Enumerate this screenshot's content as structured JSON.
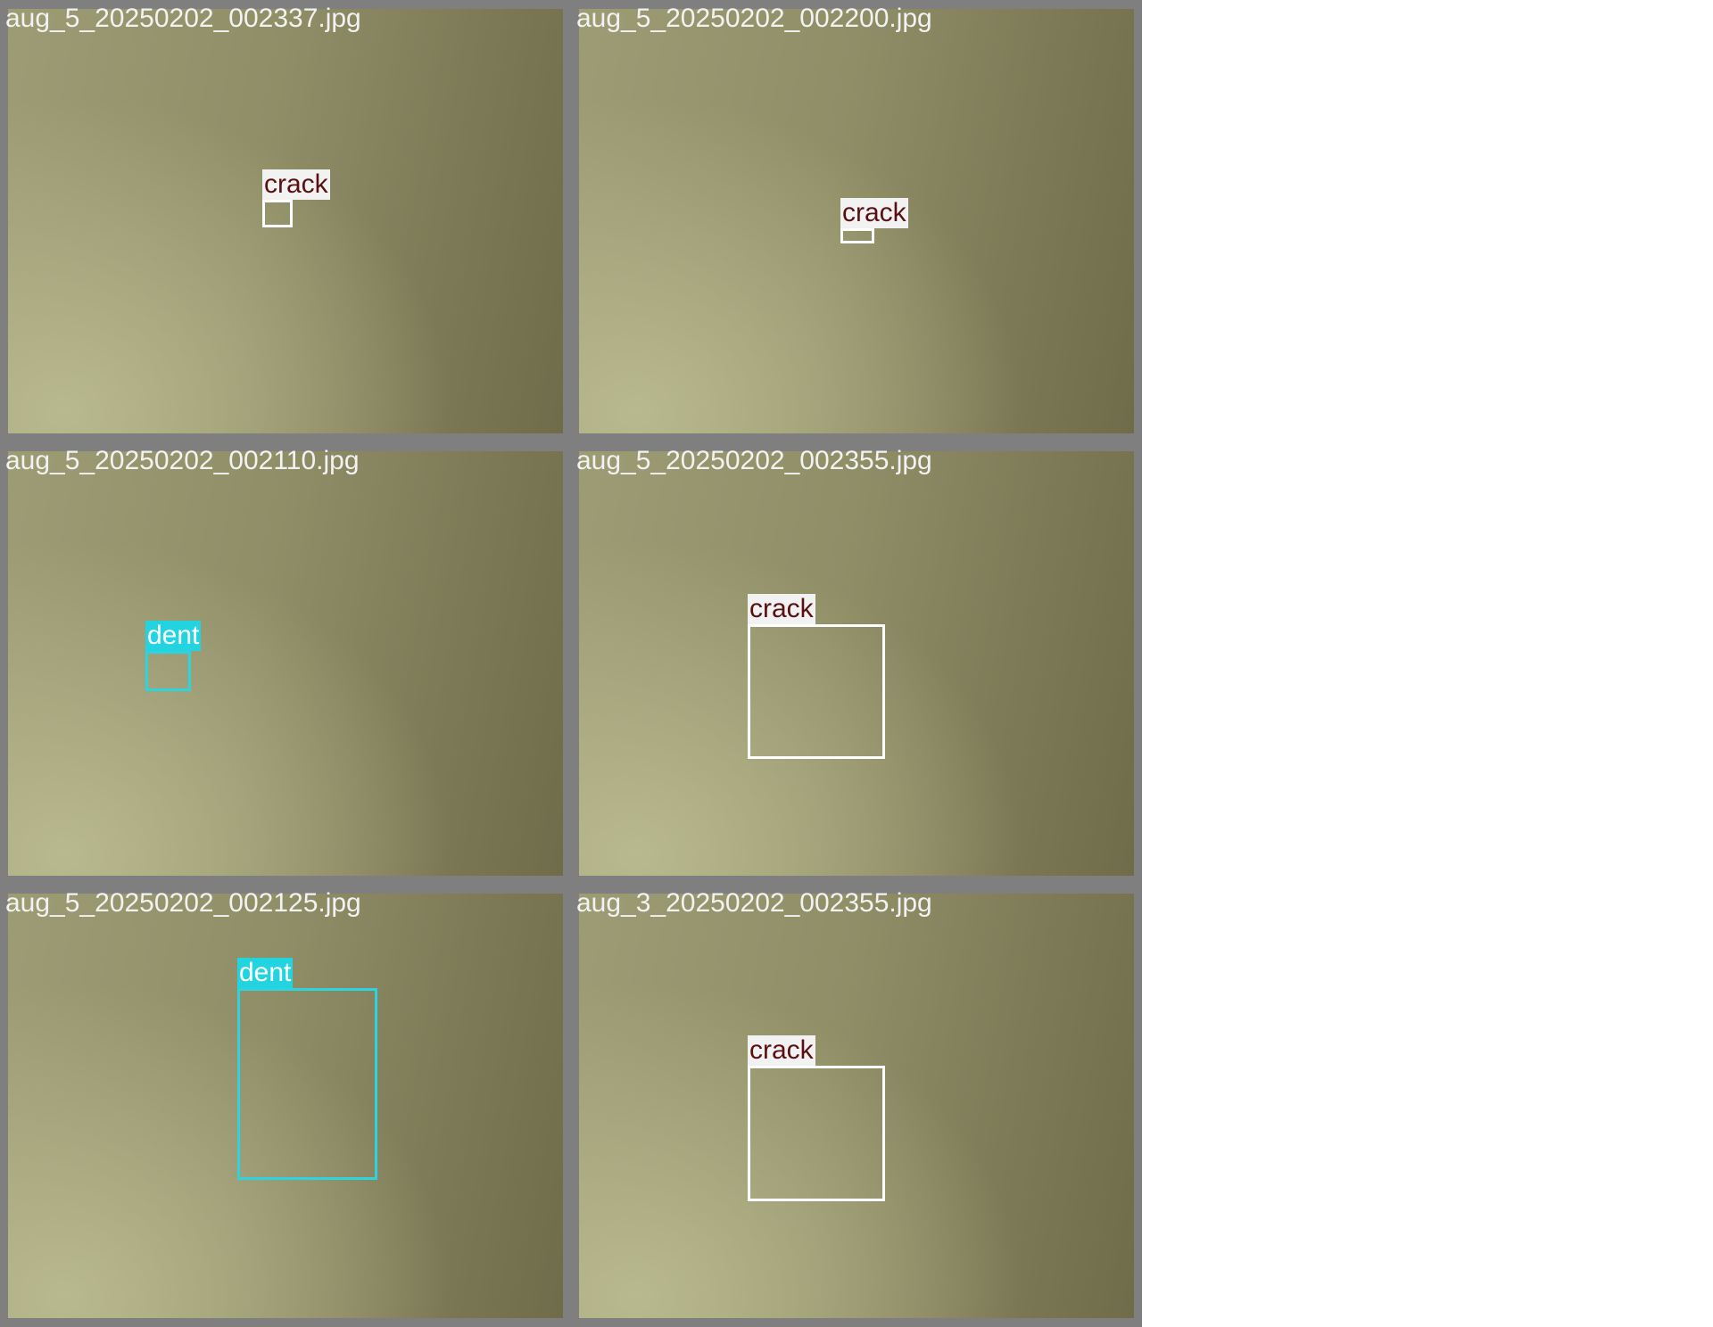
{
  "tiles": [
    {
      "filename": "aug_5_20250202_002337.jpg",
      "detections": [
        {
          "label": "crack"
        }
      ]
    },
    {
      "filename": "aug_5_20250202_002200.jpg",
      "detections": [
        {
          "label": "crack"
        }
      ]
    },
    {
      "filename": "aug_5_20250202_002110.jpg",
      "detections": [
        {
          "label": "dent"
        }
      ]
    },
    {
      "filename": "aug_5_20250202_002355.jpg",
      "detections": [
        {
          "label": "crack"
        }
      ]
    },
    {
      "filename": "aug_5_20250202_002125.jpg",
      "detections": [
        {
          "label": "dent"
        }
      ]
    },
    {
      "filename": "aug_3_20250202_002355.jpg",
      "detections": [
        {
          "label": "crack"
        }
      ]
    }
  ]
}
